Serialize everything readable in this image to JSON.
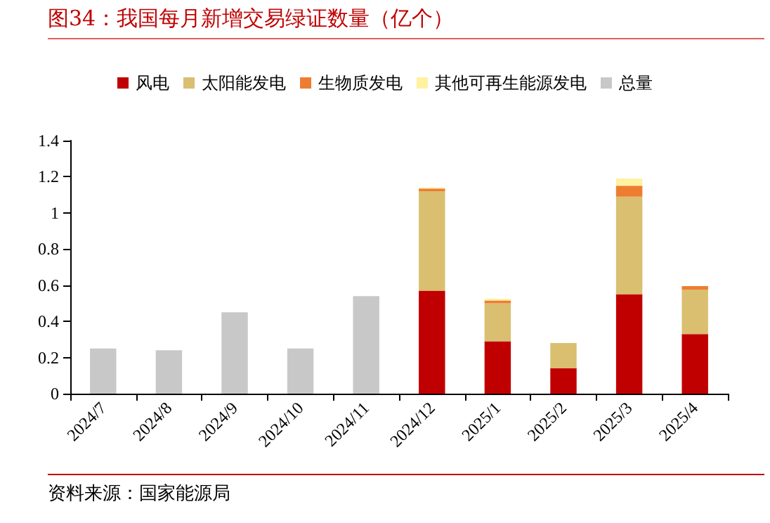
{
  "chart_data": {
    "type": "bar",
    "title": "图34：我国每月新增交易绿证数量（亿个）",
    "annotations": [
      "资料来源：国家能源局"
    ],
    "categories": [
      "2024/7",
      "2024/8",
      "2024/9",
      "2024/10",
      "2024/11",
      "2024/12",
      "2025/1",
      "2025/2",
      "2025/3",
      "2025/4"
    ],
    "series": [
      {
        "name": "风电",
        "color": "#c00000",
        "values": [
          null,
          null,
          null,
          null,
          null,
          0.57,
          0.29,
          0.14,
          0.55,
          0.33
        ]
      },
      {
        "name": "太阳能发电",
        "color": "#d9bf6f",
        "values": [
          null,
          null,
          null,
          null,
          null,
          0.55,
          0.21,
          0.14,
          0.54,
          0.245
        ]
      },
      {
        "name": "生物质发电",
        "color": "#ed7d31",
        "values": [
          null,
          null,
          null,
          null,
          null,
          0.015,
          0.015,
          null,
          0.06,
          0.02
        ]
      },
      {
        "name": "其他可再生能源发电",
        "color": "#fff2a0",
        "values": [
          null,
          null,
          null,
          null,
          null,
          0.005,
          0.01,
          null,
          0.04,
          null
        ]
      },
      {
        "name": "总量",
        "color": "#c8c8c8",
        "values": [
          0.25,
          0.24,
          0.45,
          0.25,
          0.54,
          null,
          null,
          null,
          null,
          null
        ]
      }
    ],
    "stacked": true,
    "ylim": [
      0,
      1.4
    ],
    "yticks": [
      0,
      0.2,
      0.4,
      0.6,
      0.8,
      1,
      1.2,
      1.4
    ],
    "grid": false,
    "legend": "top"
  }
}
